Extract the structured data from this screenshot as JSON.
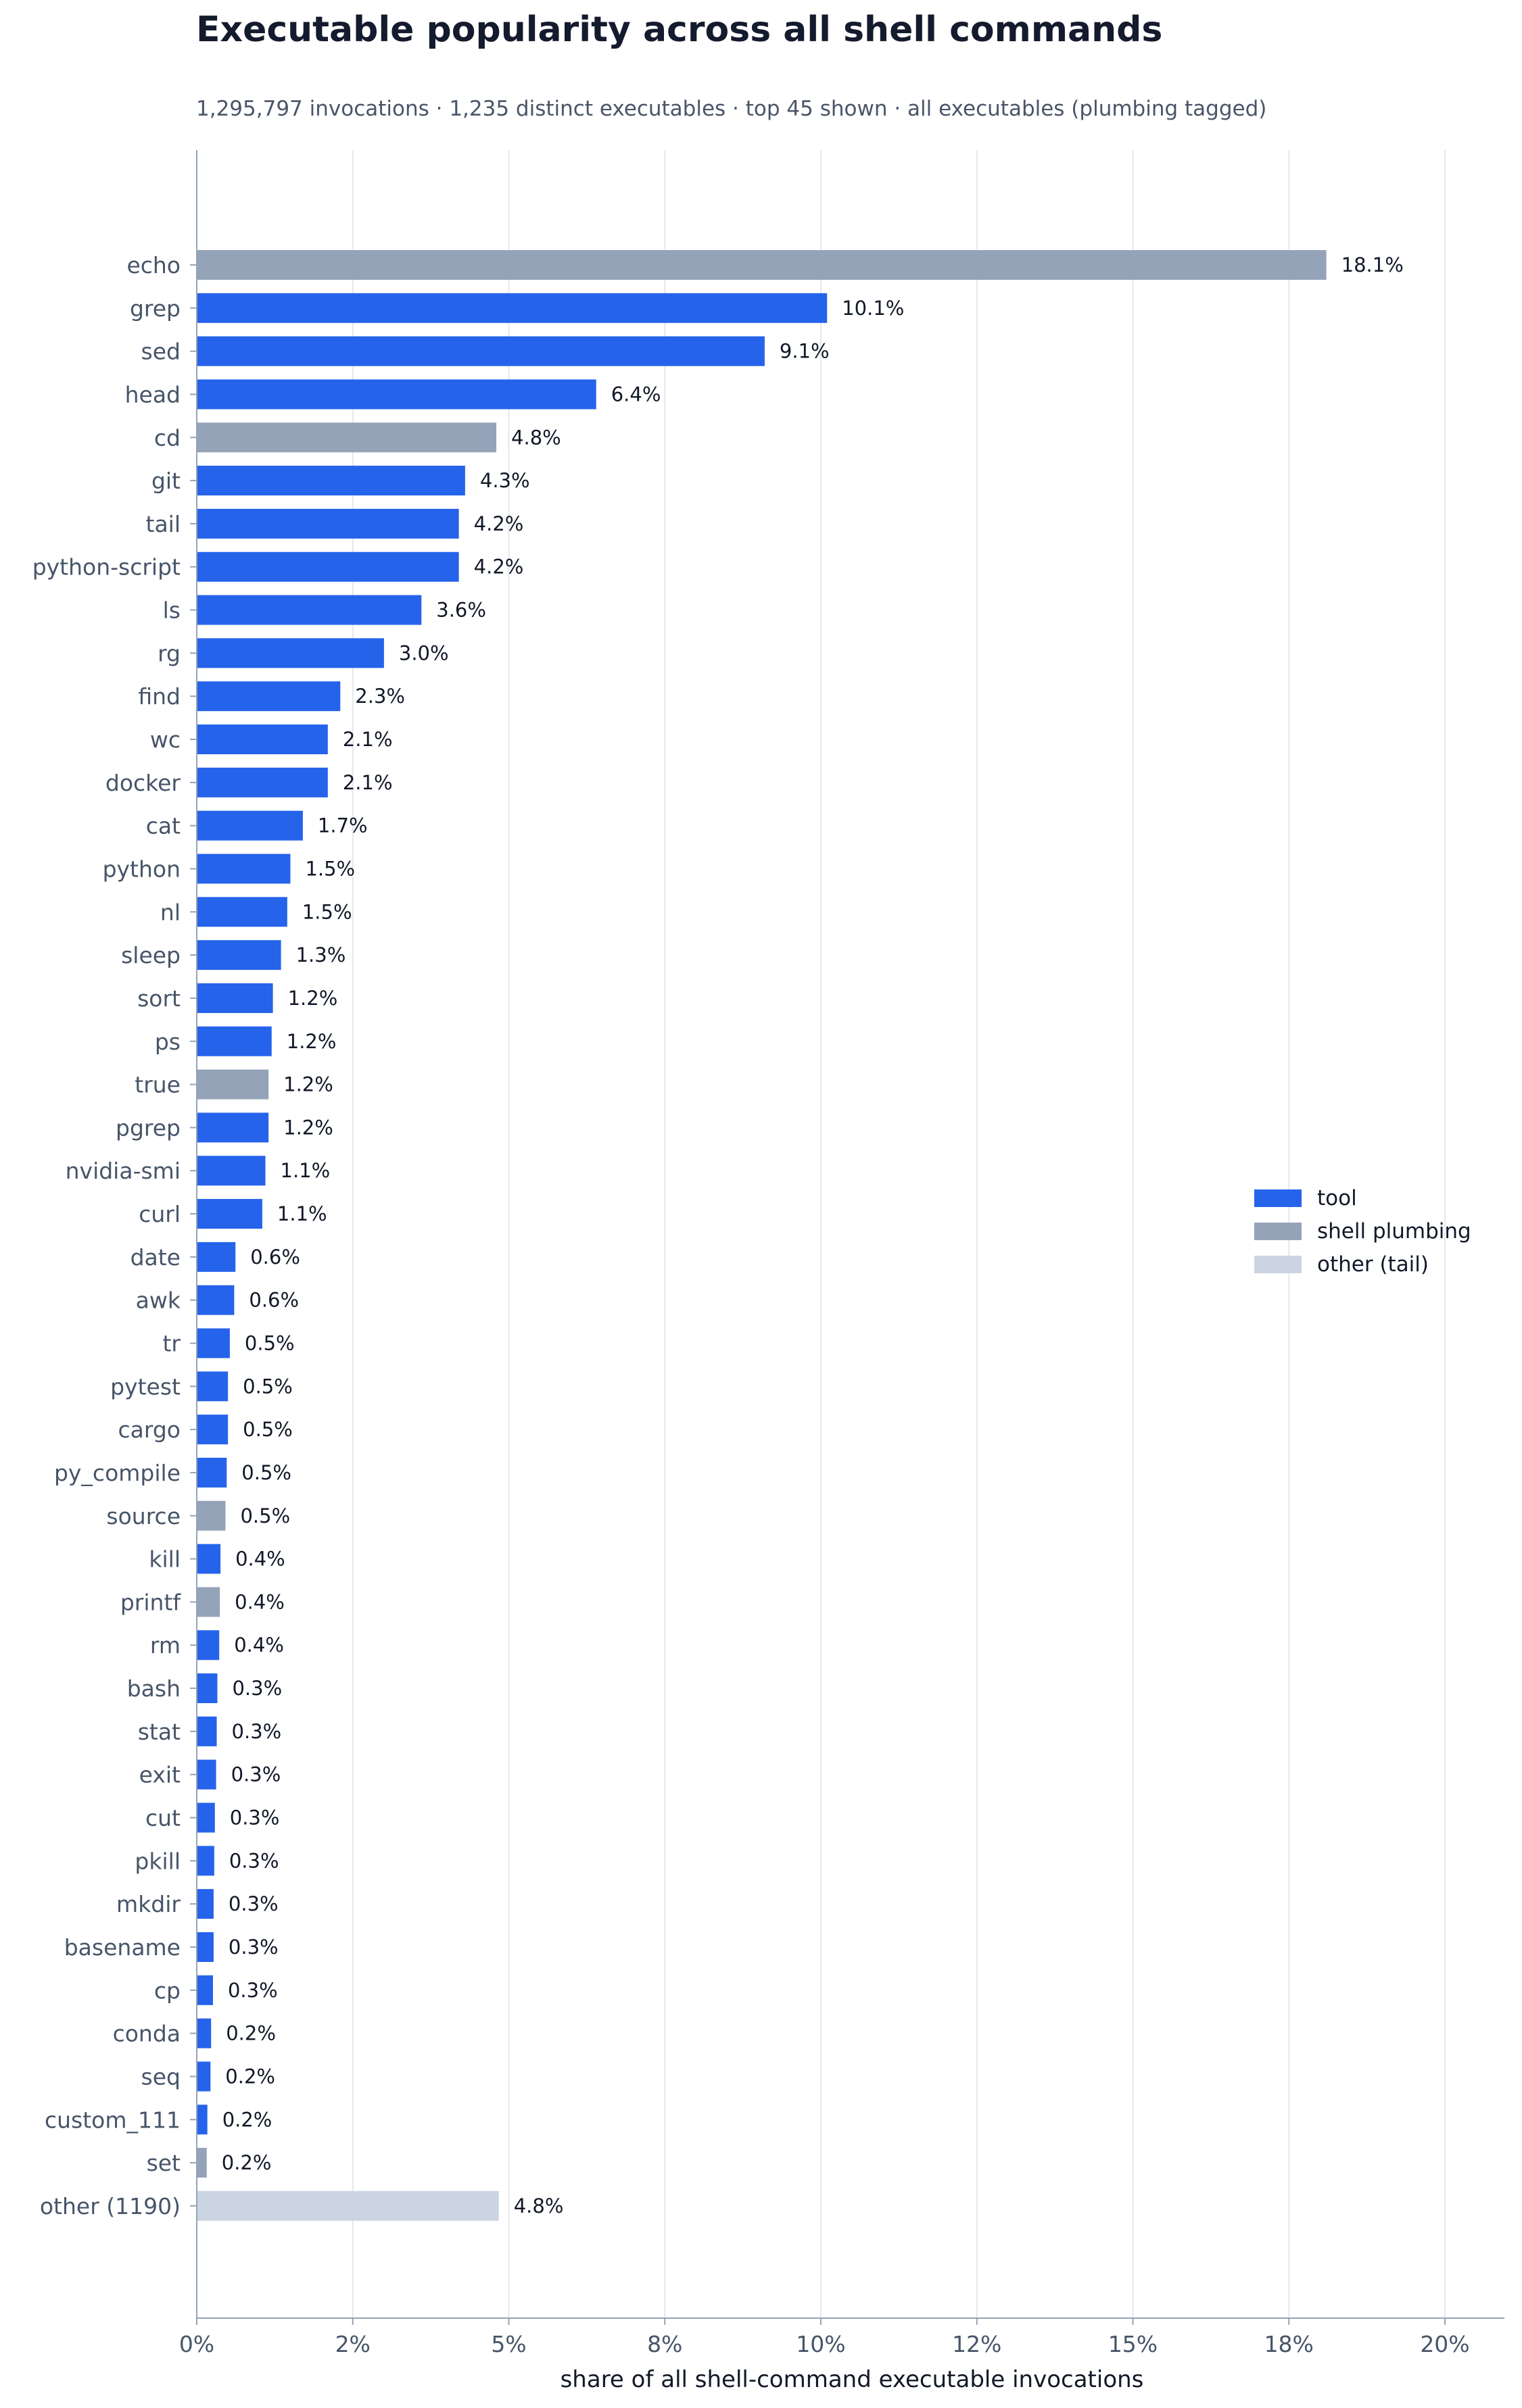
{
  "chart_data": {
    "type": "bar",
    "orientation": "horizontal",
    "title": "Executable popularity across all shell commands",
    "subtitle": "1,295,797 invocations · 1,235 distinct executables · top 45 shown · all executables (plumbing tagged)",
    "xlabel": "share of all shell-command executable invocations",
    "ylabel": "",
    "xlim": [
      0,
      21
    ],
    "x_ticks": [
      {
        "value": 0,
        "label": "0%"
      },
      {
        "value": 2.5,
        "label": "2%"
      },
      {
        "value": 5,
        "label": "5%"
      },
      {
        "value": 7.5,
        "label": "8%"
      },
      {
        "value": 10,
        "label": "10%"
      },
      {
        "value": 12.5,
        "label": "12%"
      },
      {
        "value": 15,
        "label": "15%"
      },
      {
        "value": 17.5,
        "label": "18%"
      },
      {
        "value": 20,
        "label": "20%"
      }
    ],
    "grid": "vertical",
    "legend_position": "right",
    "colors": {
      "tool": "#2563eb",
      "shell plumbing": "#94a3b8",
      "other (tail)": "#cbd5e1"
    },
    "legend": [
      {
        "key": "tool",
        "label": "tool"
      },
      {
        "key": "shell plumbing",
        "label": "shell plumbing"
      },
      {
        "key": "other (tail)",
        "label": "other (tail)"
      }
    ],
    "bars": [
      {
        "label": "echo",
        "value": 18.1,
        "value_label": "18.1%",
        "group": "shell plumbing"
      },
      {
        "label": "grep",
        "value": 10.1,
        "value_label": "10.1%",
        "group": "tool"
      },
      {
        "label": "sed",
        "value": 9.1,
        "value_label": "9.1%",
        "group": "tool"
      },
      {
        "label": "head",
        "value": 6.4,
        "value_label": "6.4%",
        "group": "tool"
      },
      {
        "label": "cd",
        "value": 4.8,
        "value_label": "4.8%",
        "group": "shell plumbing"
      },
      {
        "label": "git",
        "value": 4.3,
        "value_label": "4.3%",
        "group": "tool"
      },
      {
        "label": "tail",
        "value": 4.2,
        "value_label": "4.2%",
        "group": "tool"
      },
      {
        "label": "python-script",
        "value": 4.2,
        "value_label": "4.2%",
        "group": "tool"
      },
      {
        "label": "ls",
        "value": 3.6,
        "value_label": "3.6%",
        "group": "tool"
      },
      {
        "label": "rg",
        "value": 3.0,
        "value_label": "3.0%",
        "group": "tool"
      },
      {
        "label": "find",
        "value": 2.3,
        "value_label": "2.3%",
        "group": "tool"
      },
      {
        "label": "wc",
        "value": 2.1,
        "value_label": "2.1%",
        "group": "tool"
      },
      {
        "label": "docker",
        "value": 2.1,
        "value_label": "2.1%",
        "group": "tool"
      },
      {
        "label": "cat",
        "value": 1.7,
        "value_label": "1.7%",
        "group": "tool"
      },
      {
        "label": "python",
        "value": 1.5,
        "value_label": "1.5%",
        "group": "tool"
      },
      {
        "label": "nl",
        "value": 1.45,
        "value_label": "1.5%",
        "group": "tool"
      },
      {
        "label": "sleep",
        "value": 1.35,
        "value_label": "1.3%",
        "group": "tool"
      },
      {
        "label": "sort",
        "value": 1.22,
        "value_label": "1.2%",
        "group": "tool"
      },
      {
        "label": "ps",
        "value": 1.2,
        "value_label": "1.2%",
        "group": "tool"
      },
      {
        "label": "true",
        "value": 1.15,
        "value_label": "1.2%",
        "group": "shell plumbing"
      },
      {
        "label": "pgrep",
        "value": 1.15,
        "value_label": "1.2%",
        "group": "tool"
      },
      {
        "label": "nvidia-smi",
        "value": 1.1,
        "value_label": "1.1%",
        "group": "tool"
      },
      {
        "label": "curl",
        "value": 1.05,
        "value_label": "1.1%",
        "group": "tool"
      },
      {
        "label": "date",
        "value": 0.62,
        "value_label": "0.6%",
        "group": "tool"
      },
      {
        "label": "awk",
        "value": 0.6,
        "value_label": "0.6%",
        "group": "tool"
      },
      {
        "label": "tr",
        "value": 0.53,
        "value_label": "0.5%",
        "group": "tool"
      },
      {
        "label": "pytest",
        "value": 0.5,
        "value_label": "0.5%",
        "group": "tool"
      },
      {
        "label": "cargo",
        "value": 0.5,
        "value_label": "0.5%",
        "group": "tool"
      },
      {
        "label": "py_compile",
        "value": 0.48,
        "value_label": "0.5%",
        "group": "tool"
      },
      {
        "label": "source",
        "value": 0.46,
        "value_label": "0.5%",
        "group": "shell plumbing"
      },
      {
        "label": "kill",
        "value": 0.38,
        "value_label": "0.4%",
        "group": "tool"
      },
      {
        "label": "printf",
        "value": 0.37,
        "value_label": "0.4%",
        "group": "shell plumbing"
      },
      {
        "label": "rm",
        "value": 0.36,
        "value_label": "0.4%",
        "group": "tool"
      },
      {
        "label": "bash",
        "value": 0.33,
        "value_label": "0.3%",
        "group": "tool"
      },
      {
        "label": "stat",
        "value": 0.32,
        "value_label": "0.3%",
        "group": "tool"
      },
      {
        "label": "exit",
        "value": 0.31,
        "value_label": "0.3%",
        "group": "tool"
      },
      {
        "label": "cut",
        "value": 0.29,
        "value_label": "0.3%",
        "group": "tool"
      },
      {
        "label": "pkill",
        "value": 0.28,
        "value_label": "0.3%",
        "group": "tool"
      },
      {
        "label": "mkdir",
        "value": 0.27,
        "value_label": "0.3%",
        "group": "tool"
      },
      {
        "label": "basename",
        "value": 0.27,
        "value_label": "0.3%",
        "group": "tool"
      },
      {
        "label": "cp",
        "value": 0.26,
        "value_label": "0.3%",
        "group": "tool"
      },
      {
        "label": "conda",
        "value": 0.23,
        "value_label": "0.2%",
        "group": "tool"
      },
      {
        "label": "seq",
        "value": 0.22,
        "value_label": "0.2%",
        "group": "tool"
      },
      {
        "label": "custom_111",
        "value": 0.17,
        "value_label": "0.2%",
        "group": "tool"
      },
      {
        "label": "set",
        "value": 0.16,
        "value_label": "0.2%",
        "group": "shell plumbing"
      },
      {
        "label": "other (1190)",
        "value": 4.84,
        "value_label": "4.8%",
        "group": "other (tail)"
      }
    ]
  }
}
